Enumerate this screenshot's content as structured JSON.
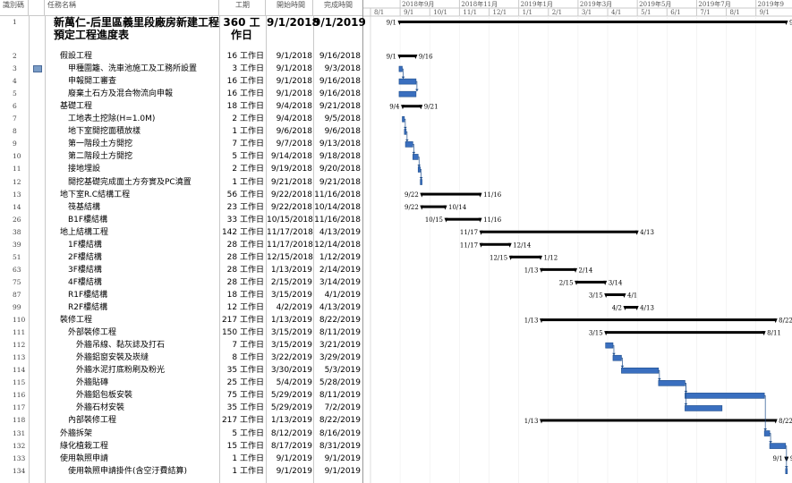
{
  "columns": {
    "id": "識別碼",
    "name": "任務名稱",
    "duration": "工期",
    "start": "開始時間",
    "finish": "完成時間"
  },
  "timeline": {
    "top": [
      {
        "label": "2018年9月",
        "date": "2018-09-02"
      },
      {
        "label": "2018年11月",
        "date": "2018-10-28"
      },
      {
        "label": "2019年1月",
        "date": "2018-12-23"
      },
      {
        "label": "2019年3月",
        "date": "2019-02-17"
      },
      {
        "label": "2019年5月",
        "date": "2019-04-14"
      },
      {
        "label": "2019年7月",
        "date": "2019-06-09"
      },
      {
        "label": "2019年9",
        "date": "2019-08-04"
      }
    ],
    "bottom": [
      {
        "label": "8/1",
        "date": "2018-08-05"
      },
      {
        "label": "9/1",
        "date": "2018-09-02"
      },
      {
        "label": "10/1",
        "date": "2018-09-30"
      },
      {
        "label": "11/1",
        "date": "2018-10-28"
      },
      {
        "label": "12/1",
        "date": "2018-11-25"
      },
      {
        "label": "1/1",
        "date": "2018-12-23"
      },
      {
        "label": "2/1",
        "date": "2019-01-20"
      },
      {
        "label": "3/1",
        "date": "2019-02-17"
      },
      {
        "label": "4/1",
        "date": "2019-03-17"
      },
      {
        "label": "5/1",
        "date": "2019-04-14"
      },
      {
        "label": "6/1",
        "date": "2019-05-12"
      },
      {
        "label": "7/1",
        "date": "2019-06-09"
      },
      {
        "label": "8/1",
        "date": "2019-07-07"
      },
      {
        "label": "9/1",
        "date": "2019-08-04"
      }
    ],
    "range_start": "2018-08-05",
    "range_end": "2019-09-02"
  },
  "colors": {
    "bar_fill": "#3a6fbf",
    "bar_border": "#1f4e8c",
    "summary": "#000000",
    "grid": "#c9c9c9",
    "link": "#1f4e8c"
  },
  "tasks": [
    {
      "id": "1",
      "name": "新萬仁-后里區義里段廠房新建工程預定工程進度表",
      "duration": "360 工作日",
      "start": "9/1/2018",
      "finish": "9/1/2019",
      "big": true,
      "type": "summary",
      "s": "2018-09-01",
      "f": "2019-09-01",
      "ls": "9/1",
      "lf": "9/1"
    },
    {
      "id": "2",
      "name": "假設工程",
      "duration": "16 工作日",
      "start": "9/1/2018",
      "finish": "9/16/2018",
      "type": "summary",
      "indent": 1,
      "s": "2018-09-01",
      "f": "2018-09-16",
      "ls": "9/1",
      "lf": "9/16"
    },
    {
      "id": "3",
      "name": "甲種圍籬、洗車池施工及工務所設置",
      "duration": "3 工作日",
      "start": "9/1/2018",
      "finish": "9/3/2018",
      "type": "task",
      "indent": 2,
      "note": true,
      "s": "2018-09-01",
      "f": "2018-09-03"
    },
    {
      "id": "4",
      "name": "申報開工審查",
      "duration": "16 工作日",
      "start": "9/1/2018",
      "finish": "9/16/2018",
      "type": "task",
      "indent": 2,
      "s": "2018-09-01",
      "f": "2018-09-16"
    },
    {
      "id": "5",
      "name": "廢棄土石方及混合物流向申報",
      "duration": "16 工作日",
      "start": "9/1/2018",
      "finish": "9/16/2018",
      "type": "task",
      "indent": 2,
      "s": "2018-09-01",
      "f": "2018-09-16"
    },
    {
      "id": "6",
      "name": "基礎工程",
      "duration": "18 工作日",
      "start": "9/4/2018",
      "finish": "9/21/2018",
      "type": "summary",
      "indent": 1,
      "s": "2018-09-04",
      "f": "2018-09-21",
      "ls": "9/4",
      "lf": "9/21"
    },
    {
      "id": "7",
      "name": "工地表土挖除(H=1.0M)",
      "duration": "2 工作日",
      "start": "9/4/2018",
      "finish": "9/5/2018",
      "type": "task",
      "indent": 2,
      "s": "2018-09-04",
      "f": "2018-09-05"
    },
    {
      "id": "8",
      "name": "地下室開挖面積放樣",
      "duration": "1 工作日",
      "start": "9/6/2018",
      "finish": "9/6/2018",
      "type": "task",
      "indent": 2,
      "s": "2018-09-06",
      "f": "2018-09-06"
    },
    {
      "id": "9",
      "name": "第一階段土方開挖",
      "duration": "7 工作日",
      "start": "9/7/2018",
      "finish": "9/13/2018",
      "type": "task",
      "indent": 2,
      "s": "2018-09-07",
      "f": "2018-09-13"
    },
    {
      "id": "10",
      "name": "第二階段土方開挖",
      "duration": "5 工作日",
      "start": "9/14/2018",
      "finish": "9/18/2018",
      "type": "task",
      "indent": 2,
      "s": "2018-09-14",
      "f": "2018-09-18"
    },
    {
      "id": "11",
      "name": "接地埋設",
      "duration": "2 工作日",
      "start": "9/19/2018",
      "finish": "9/20/2018",
      "type": "task",
      "indent": 2,
      "s": "2018-09-19",
      "f": "2018-09-20"
    },
    {
      "id": "12",
      "name": "開挖基礎完成面土方夯實及PC澆置",
      "duration": "1 工作日",
      "start": "9/21/2018",
      "finish": "9/21/2018",
      "type": "task",
      "indent": 2,
      "s": "2018-09-21",
      "f": "2018-09-21"
    },
    {
      "id": "13",
      "name": "地下室R.C結構工程",
      "duration": "56 工作日",
      "start": "9/22/2018",
      "finish": "11/16/2018",
      "type": "summary",
      "indent": 1,
      "s": "2018-09-22",
      "f": "2018-11-16",
      "ls": "9/22",
      "lf": "11/16"
    },
    {
      "id": "14",
      "name": "筏基結構",
      "duration": "23 工作日",
      "start": "9/22/2018",
      "finish": "10/14/2018",
      "type": "summary",
      "indent": 2,
      "s": "2018-09-22",
      "f": "2018-10-14",
      "ls": "9/22",
      "lf": "10/14"
    },
    {
      "id": "26",
      "name": "B1F樓結構",
      "duration": "33 工作日",
      "start": "10/15/2018",
      "finish": "11/16/2018",
      "type": "summary",
      "indent": 2,
      "s": "2018-10-15",
      "f": "2018-11-16",
      "ls": "10/15",
      "lf": "11/16"
    },
    {
      "id": "38",
      "name": "地上結構工程",
      "duration": "142 工作日",
      "start": "11/17/2018",
      "finish": "4/13/2019",
      "type": "summary",
      "indent": 1,
      "s": "2018-11-17",
      "f": "2019-04-13",
      "ls": "11/17",
      "lf": "4/13"
    },
    {
      "id": "39",
      "name": "1F樓結構",
      "duration": "28 工作日",
      "start": "11/17/2018",
      "finish": "12/14/2018",
      "type": "summary",
      "indent": 2,
      "s": "2018-11-17",
      "f": "2018-12-14",
      "ls": "11/17",
      "lf": "12/14"
    },
    {
      "id": "51",
      "name": "2F樓結構",
      "duration": "28 工作日",
      "start": "12/15/2018",
      "finish": "1/12/2019",
      "type": "summary",
      "indent": 2,
      "s": "2018-12-15",
      "f": "2019-01-12",
      "ls": "12/15",
      "lf": "1/12"
    },
    {
      "id": "63",
      "name": "3F樓結構",
      "duration": "28 工作日",
      "start": "1/13/2019",
      "finish": "2/14/2019",
      "type": "summary",
      "indent": 2,
      "s": "2019-01-13",
      "f": "2019-02-14",
      "ls": "1/13",
      "lf": "2/14"
    },
    {
      "id": "75",
      "name": "4F樓結構",
      "duration": "28 工作日",
      "start": "2/15/2019",
      "finish": "3/14/2019",
      "type": "summary",
      "indent": 2,
      "s": "2019-02-15",
      "f": "2019-03-14",
      "ls": "2/15",
      "lf": "3/14"
    },
    {
      "id": "87",
      "name": "R1F樓結構",
      "duration": "18 工作日",
      "start": "3/15/2019",
      "finish": "4/1/2019",
      "type": "summary",
      "indent": 2,
      "s": "2019-03-15",
      "f": "2019-04-01",
      "ls": "3/15",
      "lf": "4/1"
    },
    {
      "id": "99",
      "name": "R2F樓結構",
      "duration": "12 工作日",
      "start": "4/2/2019",
      "finish": "4/13/2019",
      "type": "summary",
      "indent": 2,
      "s": "2019-04-02",
      "f": "2019-04-13",
      "ls": "4/2",
      "lf": "4/13"
    },
    {
      "id": "110",
      "name": "裝修工程",
      "duration": "217 工作日",
      "start": "1/13/2019",
      "finish": "8/22/2019",
      "type": "summary",
      "indent": 1,
      "s": "2019-01-13",
      "f": "2019-08-22",
      "ls": "1/13",
      "lf": "8/22"
    },
    {
      "id": "111",
      "name": "外部裝修工程",
      "duration": "150 工作日",
      "start": "3/15/2019",
      "finish": "8/11/2019",
      "type": "summary",
      "indent": 2,
      "s": "2019-03-15",
      "f": "2019-08-11",
      "ls": "3/15",
      "lf": "8/11"
    },
    {
      "id": "112",
      "name": "外牆吊線、黏灰誌及打石",
      "duration": "7 工作日",
      "start": "3/15/2019",
      "finish": "3/21/2019",
      "type": "task",
      "indent": 3,
      "s": "2019-03-15",
      "f": "2019-03-21"
    },
    {
      "id": "113",
      "name": "外牆鋁窗安裝及崁縫",
      "duration": "8 工作日",
      "start": "3/22/2019",
      "finish": "3/29/2019",
      "type": "task",
      "indent": 3,
      "s": "2019-03-22",
      "f": "2019-03-29"
    },
    {
      "id": "114",
      "name": "外牆水泥打底粉刷及粉光",
      "duration": "35 工作日",
      "start": "3/30/2019",
      "finish": "5/3/2019",
      "type": "task",
      "indent": 3,
      "s": "2019-03-30",
      "f": "2019-05-03"
    },
    {
      "id": "115",
      "name": "外牆貼磚",
      "duration": "25 工作日",
      "start": "5/4/2019",
      "finish": "5/28/2019",
      "type": "task",
      "indent": 3,
      "s": "2019-05-04",
      "f": "2019-05-28"
    },
    {
      "id": "116",
      "name": "外牆鋁包板安裝",
      "duration": "75 工作日",
      "start": "5/29/2019",
      "finish": "8/11/2019",
      "type": "task",
      "indent": 3,
      "s": "2019-05-29",
      "f": "2019-08-11"
    },
    {
      "id": "117",
      "name": "外牆石材安裝",
      "duration": "35 工作日",
      "start": "5/29/2019",
      "finish": "7/2/2019",
      "type": "task",
      "indent": 3,
      "s": "2019-05-29",
      "f": "2019-07-02"
    },
    {
      "id": "118",
      "name": "內部裝修工程",
      "duration": "217 工作日",
      "start": "1/13/2019",
      "finish": "8/22/2019",
      "type": "summary",
      "indent": 2,
      "s": "2019-01-13",
      "f": "2019-08-22",
      "ls": "1/13",
      "lf": "8/22"
    },
    {
      "id": "131",
      "name": "外牆拆架",
      "duration": "5 工作日",
      "start": "8/12/2019",
      "finish": "8/16/2019",
      "type": "task",
      "indent": 1,
      "s": "2019-08-12",
      "f": "2019-08-16"
    },
    {
      "id": "132",
      "name": "綠化植栽工程",
      "duration": "15 工作日",
      "start": "8/17/2019",
      "finish": "8/31/2019",
      "type": "task",
      "indent": 1,
      "s": "2019-08-17",
      "f": "2019-08-31"
    },
    {
      "id": "133",
      "name": "使用執照申請",
      "duration": "1 工作日",
      "start": "9/1/2019",
      "finish": "9/1/2019",
      "type": "summary",
      "indent": 1,
      "s": "2019-09-01",
      "f": "2019-09-01",
      "ls": "9/1",
      "lf": "9/1"
    },
    {
      "id": "134",
      "name": "使用執照申請掛件(含空汙費結算)",
      "duration": "1 工作日",
      "start": "9/1/2019",
      "finish": "9/1/2019",
      "type": "task",
      "indent": 2,
      "s": "2019-09-01",
      "f": "2019-09-01"
    }
  ]
}
